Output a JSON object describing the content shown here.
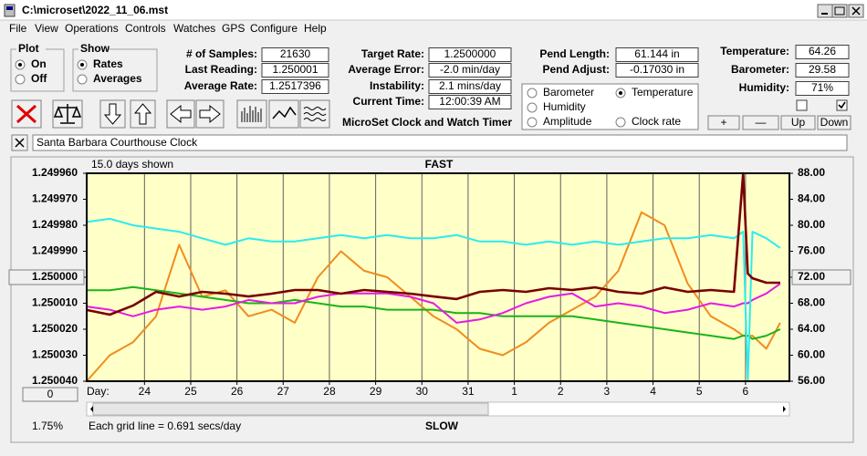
{
  "window": {
    "title": "C:\\microset\\2022_11_06.mst"
  },
  "menu": [
    "File",
    "View",
    "Operations",
    "Controls",
    "Watches",
    "GPS",
    "Configure",
    "Help"
  ],
  "plot_group": {
    "title": "Plot",
    "options": [
      "On",
      "Off"
    ],
    "selected": "On"
  },
  "show_group": {
    "title": "Show",
    "options": [
      "Rates",
      "Averages"
    ],
    "selected": "Rates"
  },
  "readouts": [
    [
      {
        "label": "# of Samples:",
        "value": "21630"
      },
      {
        "label": "Last Reading:",
        "value": "1.250001"
      },
      {
        "label": "Average Rate:",
        "value": "1.2517396"
      }
    ],
    [
      {
        "label": "Target Rate:",
        "value": "1.2500000"
      },
      {
        "label": "Average Error:",
        "value": "-2.0 min/day"
      },
      {
        "label": "Instability:",
        "value": "2.1 mins/day"
      },
      {
        "label": "Current Time:",
        "value": "12:00:39 AM"
      }
    ],
    [
      {
        "label": "Pend Length:",
        "value": "61.144 in"
      },
      {
        "label": "Pend Adjust:",
        "value": "-0.17030 in"
      }
    ],
    [
      {
        "label": "Temperature:",
        "value": "64.26"
      },
      {
        "label": "Barometer:",
        "value": "29.58"
      },
      {
        "label": "Humidity:",
        "value": "71%"
      }
    ]
  ],
  "checkboxes": [
    false,
    true
  ],
  "buttons": [
    "+",
    "—",
    "Up",
    "Down"
  ],
  "app_title": "MicroSet Clock and Watch Timer",
  "clock_name": "Santa Barbara Courthouse Clock",
  "chart_data": {
    "type": "line",
    "legend_selected": "Temperature",
    "days_shown": "15.0 days shown",
    "top_label": "FAST",
    "bottom_label": "SLOW",
    "x_label": "Day:",
    "grid_note": "Each grid line = 0.691 secs/day",
    "offset_button": "0",
    "zoom_label": "1.75%",
    "grid": "x",
    "xlim": [
      0,
      15.2
    ],
    "xticks": [
      {
        "value": 1.25,
        "label": "24"
      },
      {
        "value": 2.25,
        "label": "25"
      },
      {
        "value": 3.25,
        "label": "26"
      },
      {
        "value": 4.25,
        "label": "27"
      },
      {
        "value": 5.25,
        "label": "28"
      },
      {
        "value": 6.25,
        "label": "29"
      },
      {
        "value": 7.25,
        "label": "30"
      },
      {
        "value": 8.25,
        "label": "31"
      },
      {
        "value": 9.25,
        "label": "1"
      },
      {
        "value": 10.25,
        "label": "2"
      },
      {
        "value": 11.25,
        "label": "3"
      },
      {
        "value": 12.25,
        "label": "4"
      },
      {
        "value": 13.25,
        "label": "5"
      },
      {
        "value": 14.25,
        "label": "6"
      }
    ],
    "ylim": [
      1.25004,
      1.24996
    ],
    "yticks": [
      {
        "value": 1.24996,
        "label": "1.249960"
      },
      {
        "value": 1.24997,
        "label": "1.249970"
      },
      {
        "value": 1.24998,
        "label": "1.249980"
      },
      {
        "value": 1.24999,
        "label": "1.249990"
      },
      {
        "value": 1.25,
        "label": "1.250000"
      },
      {
        "value": 1.25001,
        "label": "1.250010"
      },
      {
        "value": 1.25002,
        "label": "1.250020"
      },
      {
        "value": 1.25003,
        "label": "1.250030"
      },
      {
        "value": 1.25004,
        "label": "1.250040"
      }
    ],
    "y2lim": [
      56,
      88
    ],
    "y2ticks": [
      {
        "value": 88,
        "label": "88.00"
      },
      {
        "value": 84,
        "label": "84.00"
      },
      {
        "value": 80,
        "label": "80.00"
      },
      {
        "value": 76,
        "label": "76.00"
      },
      {
        "value": 72,
        "label": "72.00"
      },
      {
        "value": 68,
        "label": "68.00"
      },
      {
        "value": 64,
        "label": "64.00"
      },
      {
        "value": 60,
        "label": "60.00"
      },
      {
        "value": 56,
        "label": "56.00"
      }
    ],
    "x": [
      0,
      0.5,
      1,
      1.5,
      2,
      2.5,
      3,
      3.5,
      4,
      4.5,
      5,
      5.5,
      6,
      6.5,
      7,
      7.5,
      8,
      8.5,
      9,
      9.5,
      10,
      10.5,
      11,
      11.5,
      12,
      12.5,
      13,
      13.5,
      14,
      14.2,
      14.3,
      14.4,
      14.7,
      15
    ],
    "series": [
      {
        "name": "Barometer",
        "color": "#f08c1e",
        "axis": "y2",
        "values": [
          56,
          60,
          62,
          66,
          77,
          69,
          70,
          66,
          67,
          65,
          72,
          76,
          73,
          72,
          69,
          66,
          64,
          61,
          60,
          62,
          65,
          67,
          69,
          73,
          82,
          80,
          71,
          66,
          64,
          63,
          63,
          63,
          61,
          65
        ]
      },
      {
        "name": "Temperature",
        "color": "#19b419",
        "axis": "y2",
        "values": [
          70,
          70,
          70.5,
          70,
          69.5,
          69,
          68.5,
          68,
          68,
          68.5,
          68,
          67.5,
          67.5,
          67,
          67,
          67,
          66.5,
          66.5,
          66,
          66,
          66,
          66,
          65.5,
          65,
          64.5,
          64,
          63.5,
          63,
          62.5,
          63,
          63,
          62.5,
          63,
          64
        ]
      },
      {
        "name": "Humidity",
        "color": "#e619e6",
        "axis": "y2",
        "values": [
          67.5,
          67,
          66,
          67,
          67.5,
          67,
          67.5,
          68.5,
          68,
          68,
          69,
          69.5,
          69.5,
          69.5,
          69,
          68,
          65,
          65.5,
          66.5,
          68,
          69,
          69.5,
          67.5,
          68,
          67.5,
          66.5,
          67,
          68,
          67.5,
          68,
          68,
          68.5,
          69.5,
          71
        ]
      },
      {
        "name": "Amplitude",
        "color": "#28ecf0",
        "axis": "y2",
        "values": [
          80.5,
          81,
          80,
          79.5,
          79,
          78,
          77,
          78,
          77.5,
          77.5,
          78,
          78.5,
          78,
          78.5,
          78,
          78,
          78.5,
          77.5,
          77.5,
          77,
          77.5,
          77,
          77.5,
          77,
          77.5,
          78,
          78,
          78.5,
          78,
          79,
          56,
          79,
          78,
          76.5
        ]
      },
      {
        "name": "Clock rate",
        "color": "#780000",
        "axis": "y",
        "values": [
          1.2500126,
          1.2500144,
          1.2500109,
          1.2500056,
          1.2500074,
          1.2500056,
          1.2500063,
          1.2500074,
          1.2500063,
          1.2500049,
          1.2500049,
          1.2500063,
          1.2500049,
          1.2500056,
          1.2500063,
          1.2500074,
          1.2500084,
          1.2500056,
          1.2500049,
          1.2500056,
          1.2500042,
          1.2500049,
          1.2500039,
          1.2500056,
          1.2500063,
          1.2500039,
          1.2500056,
          1.2500049,
          1.2500056,
          1.24996,
          1.2499986,
          1.2500004,
          1.2500021,
          1.2500021
        ]
      }
    ]
  }
}
